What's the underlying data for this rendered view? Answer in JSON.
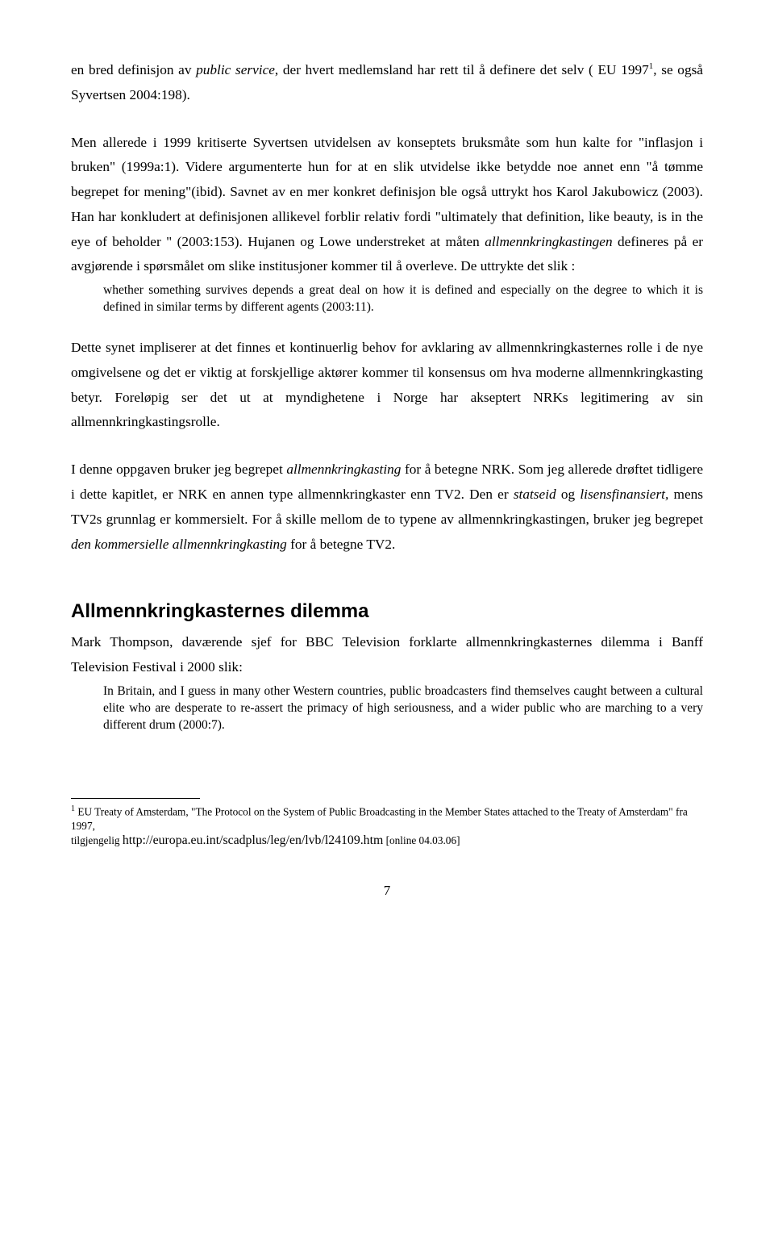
{
  "paragraphs": {
    "p1_a": "en bred definisjon av ",
    "p1_b": "public service",
    "p1_c": ", der hvert medlemsland har rett til å definere det selv ( EU 1997",
    "p1_sup": "1",
    "p1_d": ", se også Syvertsen 2004:198).",
    "p2_a": "Men allerede i 1999 kritiserte Syvertsen utvidelsen av konseptets bruksmåte som hun kalte for \"inflasjon i bruken\" (1999a:1). Videre argumenterte hun for at en slik utvidelse ikke betydde noe annet enn \"å tømme begrepet for mening\"(ibid). Savnet av en mer konkret definisjon ble også uttrykt hos Karol Jakubowicz (2003). Han har konkludert at definisjonen allikevel forblir relativ fordi \"ultimately that definition, like beauty, is in the eye of beholder \" (2003:153). Hujanen og Lowe understreket at måten ",
    "p2_b": "allmennkringkastingen",
    "p2_c": " defineres på er avgjørende i spørsmålet om slike institusjoner kommer til å overleve. De uttrykte det slik :",
    "q1": "whether something survives depends a great deal on how it is defined and especially on the degree to which it is defined in similar terms by different agents (2003:11).",
    "p3": "Dette synet impliserer at det finnes et kontinuerlig behov for avklaring av allmennkringkasternes rolle i de nye omgivelsene og det er viktig at forskjellige aktører kommer til konsensus om hva moderne allmennkringkasting betyr. Foreløpig ser det ut at myndighetene i Norge har akseptert NRKs legitimering av sin allmennkringkastingsrolle.",
    "p4_a": "I denne oppgaven bruker jeg begrepet ",
    "p4_b": "allmennkringkasting",
    "p4_c": " for å betegne NRK. Som jeg allerede drøftet tidligere i dette kapitlet, er NRK en annen type allmennkringkaster enn TV2. Den er ",
    "p4_d": "statseid",
    "p4_e": " og ",
    "p4_f": "lisensfinansiert,",
    "p4_g": " mens TV2s grunnlag er kommersielt. For å skille mellom de to typene av allmennkringkastingen, bruker jeg  begrepet ",
    "p4_h": "den kommersielle allmennkringkasting",
    "p4_i": " for å betegne TV2.",
    "heading": "Allmennkringkasternes dilemma",
    "p5": "Mark Thompson, daværende sjef for BBC Television forklarte allmennkringkasternes dilemma i Banff Television Festival i 2000 slik:",
    "q2": "In Britain, and I guess in many other Western countries, public broadcasters find themselves caught between a cultural elite who are desperate to re-assert the primacy of high seriousness, and a wider public who are marching to a very different drum (2000:7)."
  },
  "footnote": {
    "sup": "1",
    "text_a": " EU Treaty of Amsterdam, \"The Protocol on the System of Public Broadcasting in the Member States attached to the Treaty of Amsterdam\" fra 1997,",
    "text_b": " tilgjengelig ",
    "url": "http://europa.eu.int/scadplus/leg/en/lvb/l24109.htm",
    "text_c": " [online 04.03.06]"
  },
  "pagenum": "7"
}
